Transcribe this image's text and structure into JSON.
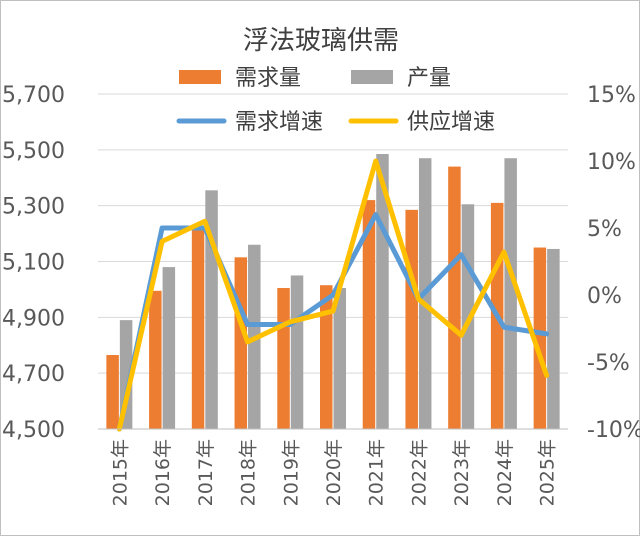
{
  "chart_data": {
    "type": "bar",
    "title": "浮法玻璃供需",
    "categories": [
      "2015年",
      "2016年",
      "2017年",
      "2018年",
      "2019年",
      "2020年",
      "2021年",
      "2022年",
      "2023年",
      "2024年",
      "2025年"
    ],
    "left_axis": {
      "ylim": [
        4500,
        5700
      ],
      "ticks": [
        "4,500",
        "4,700",
        "4,900",
        "5,100",
        "5,300",
        "5,500",
        "5,700"
      ],
      "tick_values": [
        4500,
        4700,
        4900,
        5100,
        5300,
        5500,
        5700
      ]
    },
    "right_axis": {
      "ylim": [
        -0.1,
        0.15
      ],
      "ticks": [
        "-10%",
        "-5%",
        "0%",
        "5%",
        "10%",
        "15%"
      ],
      "tick_values": [
        -0.1,
        -0.05,
        0,
        0.05,
        0.1,
        0.15
      ]
    },
    "series": [
      {
        "name": "需求量",
        "type": "bar",
        "axis": "left",
        "color": "#ED7D31",
        "values": [
          4765,
          4995,
          5225,
          5115,
          5005,
          5015,
          5320,
          5285,
          5440,
          5310,
          5150
        ]
      },
      {
        "name": "产量",
        "type": "bar",
        "axis": "left",
        "color": "#A5A5A5",
        "values": [
          4890,
          5080,
          5355,
          5160,
          5050,
          5005,
          5485,
          5470,
          5305,
          5470,
          5145
        ]
      },
      {
        "name": "需求增速",
        "type": "line",
        "axis": "right",
        "color": "#5B9BD5",
        "values": [
          -0.1,
          0.05,
          0.05,
          -0.022,
          -0.022,
          0.0,
          0.06,
          -0.003,
          0.03,
          -0.024,
          -0.029
        ]
      },
      {
        "name": "供应增速",
        "type": "line",
        "axis": "right",
        "color": "#FFC000",
        "values": [
          -0.1,
          0.04,
          0.055,
          -0.035,
          -0.02,
          -0.012,
          0.1,
          -0.003,
          -0.03,
          0.032,
          -0.06
        ]
      }
    ],
    "legend_position": "top",
    "grid": true
  }
}
